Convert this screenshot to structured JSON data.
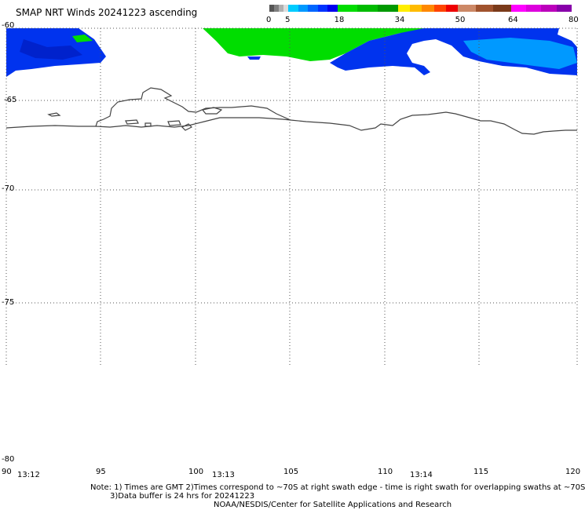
{
  "title": "SMAP NRT Winds 20241223 ascending",
  "colorbar": {
    "ticks": [
      "0",
      "5",
      "18",
      "34",
      "50",
      "64",
      "80"
    ],
    "segments": [
      {
        "from": 0,
        "to": 5,
        "colors": [
          "#555555",
          "#7f7f7f",
          "#b0b0b0",
          "#dcdcdc"
        ]
      },
      {
        "from": 5,
        "to": 18,
        "colors": [
          "#00ccff",
          "#0099ff",
          "#0066ff",
          "#0033ff",
          "#0000ee"
        ]
      },
      {
        "from": 18,
        "to": 34,
        "colors": [
          "#00dd00",
          "#00bb00",
          "#009900"
        ]
      },
      {
        "from": 34,
        "to": 50,
        "colors": [
          "#ffee00",
          "#ffbb00",
          "#ff8800",
          "#ff4400",
          "#ee0000"
        ]
      },
      {
        "from": 50,
        "to": 64,
        "colors": [
          "#cc8866",
          "#a0522d",
          "#7a3a1a"
        ]
      },
      {
        "from": 64,
        "to": 80,
        "colors": [
          "#ff00ff",
          "#dd00dd",
          "#bb00bb",
          "#8800aa"
        ]
      }
    ]
  },
  "map": {
    "lon_range": [
      90,
      120
    ],
    "lat_range": [
      -60,
      -80
    ],
    "lat_labels": [
      "-60",
      "-65",
      "-70",
      "-75",
      "-80"
    ],
    "lon_labels": [
      "90",
      "95",
      "100",
      "105",
      "110",
      "115",
      "120"
    ],
    "time_labels": [
      "13:12",
      "13:13",
      "13:14"
    ],
    "colors": {
      "grid": "#555555",
      "coast": "#444444",
      "blue": "#0033ee",
      "lightblue": "#0099ff",
      "green": "#00dd00"
    }
  },
  "notes": {
    "line1": "Note: 1) Times are GMT 2)Times correspond to ~70S at right swath edge - time is right swath for overlapping swaths at ~70S",
    "line2": "3)Data buffer is 24 hrs for 20241223",
    "line3": "NOAA/NESDIS/Center for Satellite Applications and Research"
  }
}
